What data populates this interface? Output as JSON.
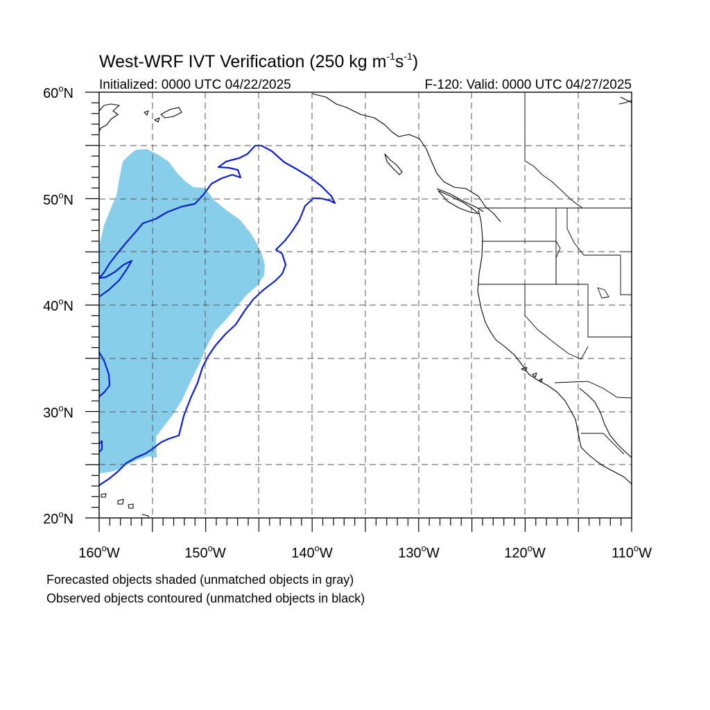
{
  "title": {
    "main": "West-WRF IVT Verification (250 kg m",
    "exp1": "-1",
    "mid": "s",
    "exp2": "-1",
    "close": ")"
  },
  "subtitle_left": "Initialized: 0000 UTC 04/22/2025",
  "subtitle_right": "F-120: Valid: 0000 UTC 04/27/2025",
  "map": {
    "projection": "cylindrical-equidistant",
    "lon_range": [
      -160,
      -110
    ],
    "lat_range": [
      20,
      60
    ],
    "grid_lines": "dashed, every 5 degrees",
    "lat_labels": [
      {
        "value": 60,
        "text": "60",
        "suffix": "N"
      },
      {
        "value": 50,
        "text": "50",
        "suffix": "N"
      },
      {
        "value": 40,
        "text": "40",
        "suffix": "N"
      },
      {
        "value": 30,
        "text": "30",
        "suffix": "N"
      },
      {
        "value": 20,
        "text": "20",
        "suffix": "N"
      }
    ],
    "lon_labels": [
      {
        "value": -160,
        "text": "160",
        "suffix": "W"
      },
      {
        "value": -150,
        "text": "150",
        "suffix": "W"
      },
      {
        "value": -140,
        "text": "140",
        "suffix": "W"
      },
      {
        "value": -130,
        "text": "130",
        "suffix": "W"
      },
      {
        "value": -120,
        "text": "120",
        "suffix": "W"
      },
      {
        "value": -110,
        "text": "110",
        "suffix": "W"
      }
    ],
    "forecast_object_color": "#87ceeb",
    "observed_contour_color": "#0a1fd6"
  },
  "captions": [
    "Forecasted objects shaded (unmatched objects in gray)",
    "Observed objects contoured (unmatched objects in black)"
  ]
}
